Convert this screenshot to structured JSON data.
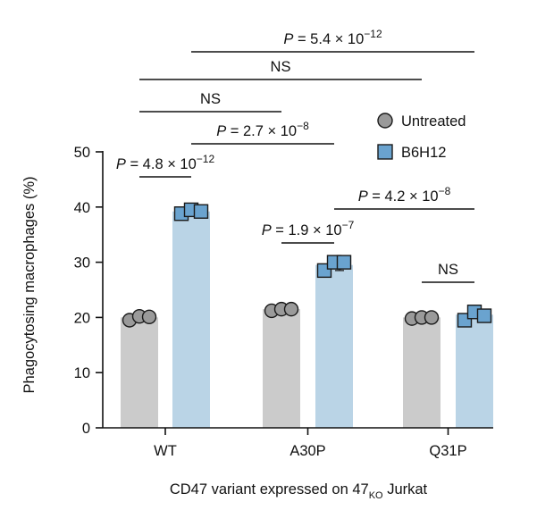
{
  "chart_data": {
    "type": "bar",
    "categories": [
      "WT",
      "A30P",
      "Q31P"
    ],
    "series": [
      {
        "name": "Untreated",
        "color": "#cbcbcb",
        "marker": "circle",
        "marker_color": "#9a9a9a",
        "values": [
          20,
          21.5,
          20
        ],
        "points": [
          [
            19.5,
            20.2,
            20.1
          ],
          [
            21.2,
            21.5,
            21.5
          ],
          [
            19.8,
            20.0,
            20.0
          ]
        ]
      },
      {
        "name": "B6H12",
        "color": "#bad4e6",
        "marker": "square",
        "marker_color": "#6aa3cf",
        "values": [
          39.2,
          29.5,
          20.5
        ],
        "points": [
          [
            38.8,
            39.5,
            39.2
          ],
          [
            28.5,
            30.0,
            30.0
          ],
          [
            19.5,
            21.0,
            20.3
          ]
        ],
        "errors": [
          0.3,
          1.0,
          0.7
        ]
      }
    ],
    "ylabel": "Phagocytosing macrophages (%)",
    "xlabel_main": "CD47 variant expressed on 47",
    "xlabel_sub": "KO",
    "xlabel_tail": " Jurkat",
    "ylim": [
      0,
      50
    ],
    "yticks": [
      0,
      10,
      20,
      30,
      40,
      50
    ],
    "legend_position": "top-right",
    "annotations": [
      {
        "from": "WT|Untreated",
        "to": "WT|B6H12",
        "level": "0",
        "p": "4.8",
        "exp": "−12"
      },
      {
        "from": "A30P|Untreated",
        "to": "A30P|B6H12",
        "level": "1",
        "p": "1.9",
        "exp": "−7"
      },
      {
        "from": "Q31P|Untreated",
        "to": "Q31P|B6H12",
        "level": "2",
        "text": "NS"
      },
      {
        "from": "WT|B6H12",
        "to": "A30P|B6H12",
        "level": "3",
        "p": "2.7",
        "exp": "−8"
      },
      {
        "from": "A30P|B6H12",
        "to": "Q31P|B6H12",
        "level": "4",
        "p": "4.2",
        "exp": "−8"
      },
      {
        "from": "WT|Untreated",
        "to": "A30P|Untreated",
        "level": "5",
        "text": "NS"
      },
      {
        "from": "WT|Untreated",
        "to": "Q31P|Untreated",
        "level": "6",
        "text": "NS"
      },
      {
        "from": "WT|B6H12",
        "to": "Q31P|B6H12",
        "level": "7",
        "p": "5.4",
        "exp": "−12"
      }
    ]
  }
}
